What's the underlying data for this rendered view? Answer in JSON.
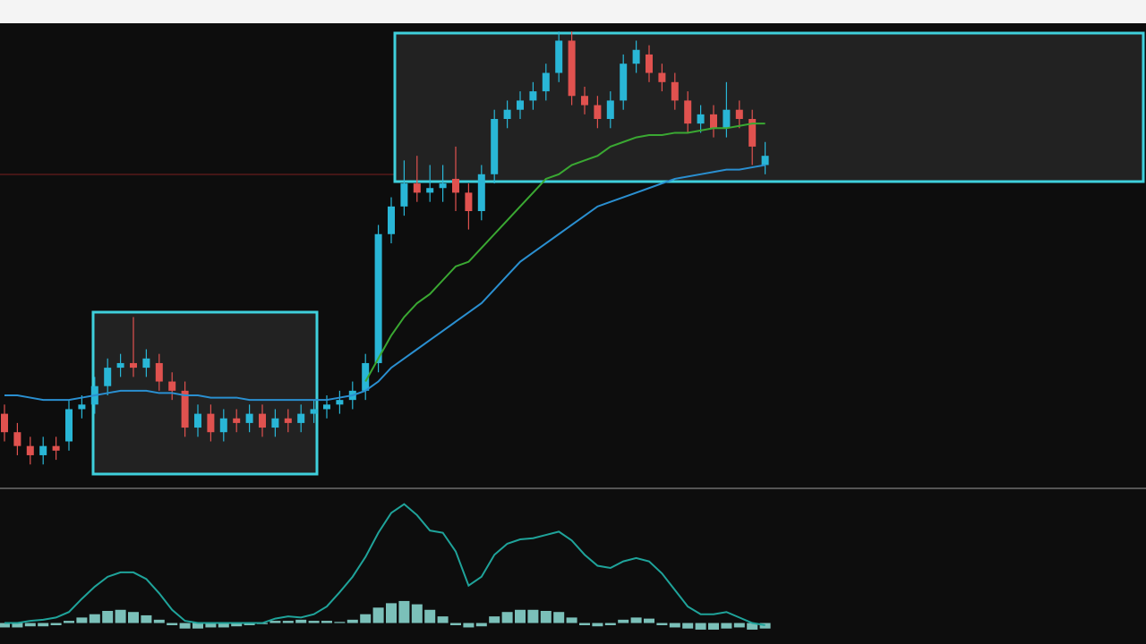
{
  "chart_data": [
    {
      "type": "candlestick",
      "categories": [
        null,
        null,
        null,
        null,
        null,
        null,
        null,
        null,
        null,
        null,
        null,
        null,
        null,
        null,
        null,
        null,
        null,
        null,
        null,
        null,
        null,
        null,
        null,
        null,
        null,
        null,
        null,
        null,
        null,
        null,
        null,
        null,
        null,
        null,
        null,
        null,
        null,
        null,
        null,
        null,
        null,
        null,
        null,
        null,
        null,
        null,
        null,
        null,
        null,
        null,
        null,
        null,
        null,
        null,
        null,
        null,
        null,
        null,
        null,
        null
      ],
      "open": [
        16,
        12,
        9,
        7,
        9,
        10,
        17,
        18,
        22,
        26,
        27,
        26,
        27,
        23,
        21,
        13,
        16,
        12,
        15,
        14,
        16,
        13,
        15,
        14,
        16,
        17,
        18,
        19,
        21,
        27,
        55,
        61,
        66,
        64,
        65,
        67,
        64,
        60,
        68,
        80,
        82,
        84,
        86,
        90,
        97,
        85,
        83,
        80,
        84,
        92,
        94,
        90,
        88,
        84,
        79,
        81,
        78,
        82,
        80,
        70
      ],
      "high": [
        18,
        14,
        11,
        11,
        11,
        19,
        20,
        24,
        28,
        29,
        37,
        30,
        29,
        25,
        23,
        18,
        18,
        17,
        17,
        18,
        18,
        17,
        17,
        18,
        19,
        20,
        21,
        23,
        29,
        57,
        63,
        71,
        72,
        70,
        70,
        74,
        66,
        70,
        82,
        84,
        86,
        88,
        92,
        99,
        99,
        87,
        85,
        86,
        94,
        97,
        96,
        92,
        90,
        86,
        83,
        83,
        88,
        84,
        82,
        75
      ],
      "low": [
        10,
        7,
        5,
        5,
        6,
        8,
        15,
        16,
        20,
        24,
        24,
        24,
        21,
        19,
        11,
        11,
        10,
        10,
        12,
        12,
        11,
        11,
        12,
        12,
        14,
        15,
        16,
        17,
        19,
        25,
        53,
        59,
        62,
        62,
        62,
        60,
        56,
        58,
        66,
        78,
        80,
        82,
        84,
        88,
        83,
        81,
        78,
        78,
        82,
        90,
        88,
        86,
        82,
        77,
        77,
        76,
        76,
        78,
        70,
        68
      ],
      "close": [
        12,
        9,
        7,
        9,
        8,
        17,
        18,
        22,
        26,
        27,
        26,
        28,
        23,
        21,
        13,
        16,
        12,
        15,
        14,
        16,
        13,
        15,
        14,
        16,
        17,
        18,
        19,
        21,
        27,
        55,
        61,
        66,
        64,
        65,
        66,
        64,
        60,
        68,
        80,
        82,
        84,
        86,
        90,
        97,
        85,
        83,
        80,
        84,
        92,
        95,
        90,
        88,
        84,
        79,
        81,
        78,
        82,
        80,
        74,
        72
      ],
      "up_color": "#29b6d6",
      "down_color": "#e0524f",
      "series": [
        {
          "color": "#2a8fd0",
          "values": [
            20,
            20,
            19.5,
            19,
            19,
            19,
            19.5,
            20,
            20.5,
            21,
            21,
            21,
            20.5,
            20.5,
            20,
            20,
            19.5,
            19.5,
            19.5,
            19,
            19,
            19,
            19,
            19,
            19,
            19,
            19.5,
            20,
            21,
            23,
            26,
            28,
            30,
            32,
            34,
            36,
            38,
            40,
            43,
            46,
            49,
            51,
            53,
            55,
            57,
            59,
            61,
            62,
            63,
            64,
            65,
            66,
            67,
            67.5,
            68,
            68.5,
            69,
            69,
            69.5,
            70
          ]
        },
        {
          "color": "#3aa832",
          "values": [
            null,
            null,
            null,
            null,
            null,
            null,
            null,
            null,
            null,
            null,
            null,
            null,
            null,
            null,
            null,
            null,
            null,
            null,
            null,
            null,
            null,
            null,
            null,
            null,
            null,
            null,
            null,
            null,
            23,
            28,
            33,
            37,
            40,
            42,
            45,
            48,
            49,
            52,
            55,
            58,
            61,
            64,
            67,
            68,
            70,
            71,
            72,
            74,
            75,
            76,
            76.5,
            76.5,
            77,
            77,
            77.5,
            78,
            78,
            78.5,
            79,
            79
          ]
        }
      ],
      "ylim": [
        0,
        100
      ]
    },
    {
      "type": "oscillator",
      "categories": [
        null,
        null,
        null,
        null,
        null,
        null,
        null,
        null,
        null,
        null,
        null,
        null,
        null,
        null,
        null,
        null,
        null,
        null,
        null,
        null,
        null,
        null,
        null,
        null,
        null,
        null,
        null,
        null,
        null,
        null,
        null,
        null,
        null,
        null,
        null,
        null,
        null,
        null,
        null,
        null,
        null,
        null,
        null,
        null,
        null,
        null,
        null,
        null,
        null,
        null,
        null,
        null,
        null,
        null,
        null,
        null,
        null,
        null,
        null,
        null
      ],
      "series": [
        {
          "color": "#1fa39a",
          "values": [
            0,
            0,
            2,
            3,
            5,
            10,
            22,
            33,
            42,
            46,
            46,
            40,
            27,
            12,
            2,
            0,
            0,
            0,
            0,
            0,
            0,
            4,
            6,
            5,
            8,
            15,
            28,
            42,
            60,
            82,
            100,
            108,
            98,
            84,
            82,
            65,
            34,
            42,
            62,
            72,
            76,
            77,
            80,
            83,
            75,
            62,
            52,
            50,
            56,
            59,
            56,
            45,
            30,
            15,
            8,
            8,
            10,
            5,
            0,
            -2
          ]
        }
      ],
      "histogram": {
        "color": "#8fe0d8",
        "values": [
          -4,
          -4,
          -3,
          -3,
          -2,
          2,
          5,
          8,
          11,
          12,
          10,
          7,
          3,
          -2,
          -5,
          -5,
          -4,
          -4,
          -3,
          -2,
          -1,
          2,
          2,
          3,
          2,
          2,
          1,
          3,
          8,
          14,
          18,
          20,
          17,
          12,
          6,
          -2,
          -4,
          -3,
          6,
          10,
          12,
          12,
          11,
          10,
          5,
          -2,
          -3,
          -2,
          3,
          5,
          4,
          -2,
          -4,
          -5,
          -6,
          -6,
          -5,
          -4,
          -6,
          -5
        ]
      },
      "ylim": [
        -15,
        115
      ]
    }
  ]
}
